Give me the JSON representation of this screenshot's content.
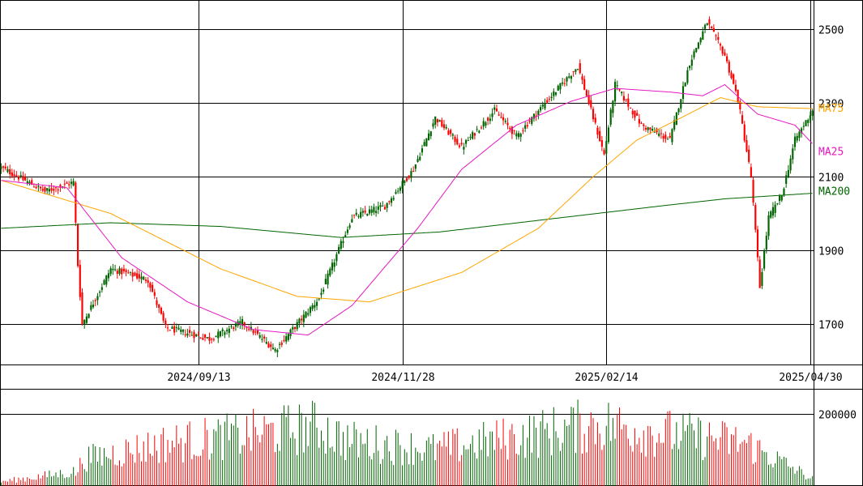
{
  "chart_data": [
    {
      "type": "candlestick",
      "title": "",
      "xlabel": "",
      "ylabel": "",
      "ylim": [
        1590,
        2580
      ],
      "y_ticks": [
        "2500",
        "2300",
        "2100",
        "1900",
        "1700"
      ],
      "x_tick_labels": [
        "2024/09/13",
        "2024/11/28",
        "2025/02/14",
        "2025/04/30"
      ],
      "grid": true,
      "up_color": "#006400",
      "down_color": "#ff0000",
      "legend": [
        {
          "name": "MA75",
          "color": "#ffa500"
        },
        {
          "name": "MA25",
          "color": "#e619c2"
        },
        {
          "name": "MA200",
          "color": "#006400"
        }
      ],
      "ohlc_keypoints": [
        {
          "index": 0,
          "close": 2125
        },
        {
          "index": 20,
          "close": 2060
        },
        {
          "index": 33,
          "close": 2085
        },
        {
          "index": 35,
          "close": 1860
        },
        {
          "index": 37,
          "close": 1700
        },
        {
          "index": 50,
          "close": 1850
        },
        {
          "index": 67,
          "close": 1820
        },
        {
          "index": 75,
          "close": 1690
        },
        {
          "index": 95,
          "close": 1660
        },
        {
          "index": 110,
          "close": 1705
        },
        {
          "index": 125,
          "close": 1630
        },
        {
          "index": 145,
          "close": 1770
        },
        {
          "index": 160,
          "close": 1990
        },
        {
          "index": 175,
          "close": 2020
        },
        {
          "index": 188,
          "close": 2120
        },
        {
          "index": 198,
          "close": 2260
        },
        {
          "index": 210,
          "close": 2180
        },
        {
          "index": 225,
          "close": 2280
        },
        {
          "index": 235,
          "close": 2210
        },
        {
          "index": 248,
          "close": 2300
        },
        {
          "index": 263,
          "close": 2400
        },
        {
          "index": 275,
          "close": 2160
        },
        {
          "index": 280,
          "close": 2350
        },
        {
          "index": 292,
          "close": 2240
        },
        {
          "index": 305,
          "close": 2200
        },
        {
          "index": 314,
          "close": 2410
        },
        {
          "index": 322,
          "close": 2520
        },
        {
          "index": 330,
          "close": 2430
        },
        {
          "index": 336,
          "close": 2310
        },
        {
          "index": 342,
          "close": 2100
        },
        {
          "index": 346,
          "close": 1800
        },
        {
          "index": 350,
          "close": 1990
        },
        {
          "index": 356,
          "close": 2050
        },
        {
          "index": 362,
          "close": 2200
        },
        {
          "index": 370,
          "close": 2280
        }
      ],
      "ma75_keypoints": [
        {
          "index": 0,
          "value": 2090
        },
        {
          "index": 50,
          "value": 2000
        },
        {
          "index": 100,
          "value": 1850
        },
        {
          "index": 135,
          "value": 1775
        },
        {
          "index": 168,
          "value": 1760
        },
        {
          "index": 210,
          "value": 1840
        },
        {
          "index": 245,
          "value": 1960
        },
        {
          "index": 270,
          "value": 2100
        },
        {
          "index": 290,
          "value": 2200
        },
        {
          "index": 315,
          "value": 2275
        },
        {
          "index": 328,
          "value": 2315
        },
        {
          "index": 345,
          "value": 2290
        },
        {
          "index": 370,
          "value": 2285
        }
      ],
      "ma25_keypoints": [
        {
          "index": 0,
          "value": 2090
        },
        {
          "index": 30,
          "value": 2070
        },
        {
          "index": 55,
          "value": 1880
        },
        {
          "index": 85,
          "value": 1760
        },
        {
          "index": 115,
          "value": 1685
        },
        {
          "index": 140,
          "value": 1670
        },
        {
          "index": 160,
          "value": 1750
        },
        {
          "index": 190,
          "value": 1960
        },
        {
          "index": 210,
          "value": 2120
        },
        {
          "index": 235,
          "value": 2240
        },
        {
          "index": 260,
          "value": 2305
        },
        {
          "index": 280,
          "value": 2340
        },
        {
          "index": 305,
          "value": 2330
        },
        {
          "index": 320,
          "value": 2320
        },
        {
          "index": 330,
          "value": 2350
        },
        {
          "index": 345,
          "value": 2270
        },
        {
          "index": 362,
          "value": 2240
        },
        {
          "index": 370,
          "value": 2190
        }
      ],
      "ma200_keypoints": [
        {
          "index": 0,
          "value": 1960
        },
        {
          "index": 50,
          "value": 1975
        },
        {
          "index": 100,
          "value": 1965
        },
        {
          "index": 155,
          "value": 1935
        },
        {
          "index": 200,
          "value": 1950
        },
        {
          "index": 250,
          "value": 1985
        },
        {
          "index": 300,
          "value": 2020
        },
        {
          "index": 330,
          "value": 2040
        },
        {
          "index": 370,
          "value": 2055
        }
      ]
    },
    {
      "type": "bar",
      "title": "",
      "xlabel": "",
      "ylabel": "",
      "ylim": [
        0,
        270000
      ],
      "y_ticks": [
        "200000"
      ],
      "grid": true,
      "note_source": "volume",
      "volume_keypoints": [
        {
          "index": 0,
          "value": 18000
        },
        {
          "index": 35,
          "value": 60000
        },
        {
          "index": 37,
          "value": 110000
        },
        {
          "index": 75,
          "value": 175000
        },
        {
          "index": 145,
          "value": 245000
        },
        {
          "index": 158,
          "value": 185000
        },
        {
          "index": 198,
          "value": 150000
        },
        {
          "index": 272,
          "value": 255000
        },
        {
          "index": 340,
          "value": 175000
        },
        {
          "index": 370,
          "value": 30000
        }
      ]
    }
  ]
}
